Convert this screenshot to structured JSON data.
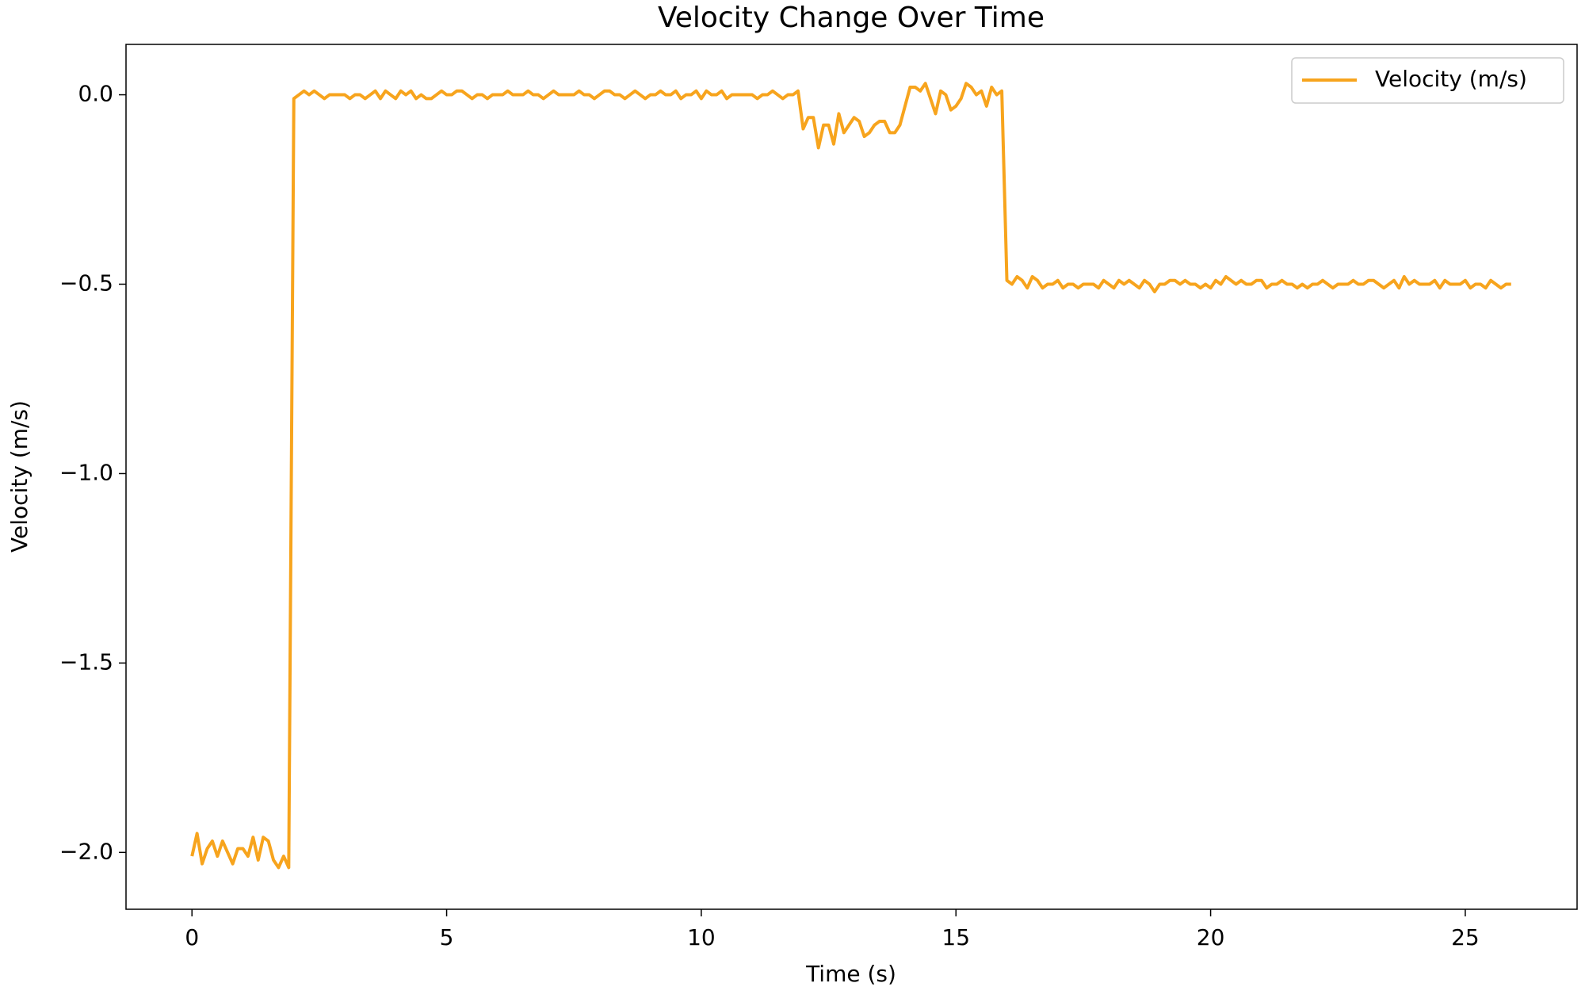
{
  "chart_data": {
    "type": "line",
    "title": "Velocity Change Over Time",
    "xlabel": "Time (s)",
    "ylabel": "Velocity (m/s)",
    "x": [
      0,
      0.1,
      0.2,
      0.3,
      0.4,
      0.5,
      0.6,
      0.7,
      0.8,
      0.9,
      1,
      1.1,
      1.2,
      1.3,
      1.4,
      1.5,
      1.6,
      1.7,
      1.8,
      1.9,
      2,
      2.1,
      2.2,
      2.3,
      2.4,
      2.5,
      2.6,
      2.7,
      2.8,
      2.9,
      3,
      3.1,
      3.2,
      3.3,
      3.4,
      3.5,
      3.6,
      3.7,
      3.8,
      3.9,
      4,
      4.1,
      4.2,
      4.3,
      4.4,
      4.5,
      4.6,
      4.7,
      4.8,
      4.9,
      5,
      5.1,
      5.2,
      5.3,
      5.4,
      5.5,
      5.6,
      5.7,
      5.8,
      5.9,
      6,
      6.1,
      6.2,
      6.3,
      6.4,
      6.5,
      6.6,
      6.7,
      6.8,
      6.9,
      7,
      7.1,
      7.2,
      7.3,
      7.4,
      7.5,
      7.6,
      7.7,
      7.8,
      7.9,
      8,
      8.1,
      8.2,
      8.3,
      8.4,
      8.5,
      8.6,
      8.7,
      8.8,
      8.9,
      9,
      9.1,
      9.2,
      9.3,
      9.4,
      9.5,
      9.6,
      9.7,
      9.8,
      9.9,
      10,
      10.1,
      10.2,
      10.3,
      10.4,
      10.5,
      10.6,
      10.7,
      10.8,
      10.9,
      11,
      11.1,
      11.2,
      11.3,
      11.4,
      11.5,
      11.6,
      11.7,
      11.8,
      11.9,
      12,
      12.1,
      12.2,
      12.3,
      12.4,
      12.5,
      12.6,
      12.7,
      12.8,
      12.9,
      13,
      13.1,
      13.2,
      13.3,
      13.4,
      13.5,
      13.6,
      13.7,
      13.8,
      13.9,
      14,
      14.1,
      14.2,
      14.3,
      14.4,
      14.5,
      14.6,
      14.7,
      14.8,
      14.9,
      15,
      15.1,
      15.2,
      15.3,
      15.4,
      15.5,
      15.6,
      15.7,
      15.8,
      15.9,
      16,
      16.1,
      16.2,
      16.3,
      16.4,
      16.5,
      16.6,
      16.7,
      16.8,
      16.9,
      17,
      17.1,
      17.2,
      17.3,
      17.4,
      17.5,
      17.6,
      17.7,
      17.8,
      17.9,
      18,
      18.1,
      18.2,
      18.3,
      18.4,
      18.5,
      18.6,
      18.7,
      18.8,
      18.9,
      19,
      19.1,
      19.2,
      19.3,
      19.4,
      19.5,
      19.6,
      19.7,
      19.8,
      19.9,
      20,
      20.1,
      20.2,
      20.3,
      20.4,
      20.5,
      20.6,
      20.7,
      20.8,
      20.9,
      21,
      21.1,
      21.2,
      21.3,
      21.4,
      21.5,
      21.6,
      21.7,
      21.8,
      21.9,
      22,
      22.1,
      22.2,
      22.3,
      22.4,
      22.5,
      22.6,
      22.7,
      22.8,
      22.9,
      23,
      23.1,
      23.2,
      23.3,
      23.4,
      23.5,
      23.6,
      23.7,
      23.8,
      23.9,
      24,
      24.1,
      24.2,
      24.3,
      24.4,
      24.5,
      24.6,
      24.7,
      24.8,
      24.9,
      25,
      25.1,
      25.2,
      25.3,
      25.4,
      25.5,
      25.6,
      25.7,
      25.8,
      25.9
    ],
    "series": [
      {
        "name": "Velocity (m/s)",
        "color": "#f7a41d",
        "values": [
          -2.01,
          -1.95,
          -2.03,
          -1.99,
          -1.97,
          -2.01,
          -1.97,
          -2.0,
          -2.03,
          -1.99,
          -1.99,
          -2.01,
          -1.96,
          -2.02,
          -1.96,
          -1.97,
          -2.02,
          -2.04,
          -2.01,
          -2.04,
          -0.01,
          0,
          0.01,
          0,
          0.01,
          0,
          -0.01,
          0,
          0,
          0,
          0,
          -0.01,
          0,
          0,
          -0.01,
          0,
          0.01,
          -0.01,
          0.01,
          0,
          -0.01,
          0.01,
          0,
          0.01,
          -0.01,
          0,
          -0.01,
          -0.01,
          0,
          0.01,
          0,
          0,
          0.01,
          0.01,
          0,
          -0.01,
          0,
          0,
          -0.01,
          0,
          0,
          0,
          0.01,
          0,
          0,
          0,
          0.01,
          0,
          0,
          -0.01,
          0,
          0.01,
          0,
          0,
          0,
          0,
          0.01,
          0,
          0,
          -0.01,
          0,
          0.01,
          0.01,
          0,
          0,
          -0.01,
          0,
          0.01,
          0,
          -0.01,
          0,
          0,
          0.01,
          0,
          0,
          0.01,
          -0.01,
          0,
          0,
          0.01,
          -0.01,
          0.01,
          0,
          0,
          0.01,
          -0.01,
          0,
          0,
          0,
          0,
          0,
          -0.01,
          0,
          0,
          0.01,
          0,
          -0.01,
          0,
          0,
          0.01,
          -0.09,
          -0.06,
          -0.06,
          -0.14,
          -0.08,
          -0.08,
          -0.13,
          -0.05,
          -0.1,
          -0.08,
          -0.06,
          -0.07,
          -0.11,
          -0.1,
          -0.08,
          -0.07,
          -0.07,
          -0.1,
          -0.1,
          -0.08,
          -0.03,
          0.02,
          0.02,
          0.01,
          0.03,
          -0.01,
          -0.05,
          0.01,
          0,
          -0.04,
          -0.03,
          -0.01,
          0.03,
          0.02,
          0,
          0.01,
          -0.03,
          0.02,
          0,
          0.01,
          -0.49,
          -0.5,
          -0.48,
          -0.49,
          -0.51,
          -0.48,
          -0.49,
          -0.51,
          -0.5,
          -0.5,
          -0.49,
          -0.51,
          -0.5,
          -0.5,
          -0.51,
          -0.5,
          -0.5,
          -0.5,
          -0.51,
          -0.49,
          -0.5,
          -0.51,
          -0.49,
          -0.5,
          -0.49,
          -0.5,
          -0.51,
          -0.49,
          -0.5,
          -0.52,
          -0.5,
          -0.5,
          -0.49,
          -0.49,
          -0.5,
          -0.49,
          -0.5,
          -0.5,
          -0.51,
          -0.5,
          -0.51,
          -0.49,
          -0.5,
          -0.48,
          -0.49,
          -0.5,
          -0.49,
          -0.5,
          -0.5,
          -0.49,
          -0.49,
          -0.51,
          -0.5,
          -0.5,
          -0.49,
          -0.5,
          -0.5,
          -0.51,
          -0.5,
          -0.51,
          -0.5,
          -0.5,
          -0.49,
          -0.5,
          -0.51,
          -0.5,
          -0.5,
          -0.5,
          -0.49,
          -0.5,
          -0.5,
          -0.49,
          -0.49,
          -0.5,
          -0.51,
          -0.5,
          -0.49,
          -0.51,
          -0.48,
          -0.5,
          -0.49,
          -0.5,
          -0.5,
          -0.5,
          -0.49,
          -0.51,
          -0.49,
          -0.5,
          -0.5,
          -0.5,
          -0.49,
          -0.51,
          -0.5,
          -0.5,
          -0.51,
          -0.49,
          -0.5,
          -0.51,
          -0.5,
          -0.5
        ]
      }
    ],
    "xlim": [
      -1.295,
      27.195
    ],
    "xticks": [
      0,
      5,
      10,
      15,
      20,
      25
    ],
    "ylim": [
      -2.15,
      0.133
    ],
    "yticks": [
      {
        "value": 0,
        "label": "0.0"
      },
      {
        "value": -0.5,
        "label": "−0.5"
      },
      {
        "value": -1,
        "label": "−1.0"
      },
      {
        "value": -1.5,
        "label": "−1.5"
      },
      {
        "value": -2,
        "label": "−2.0"
      }
    ],
    "grid": false,
    "legend": "upper right"
  }
}
